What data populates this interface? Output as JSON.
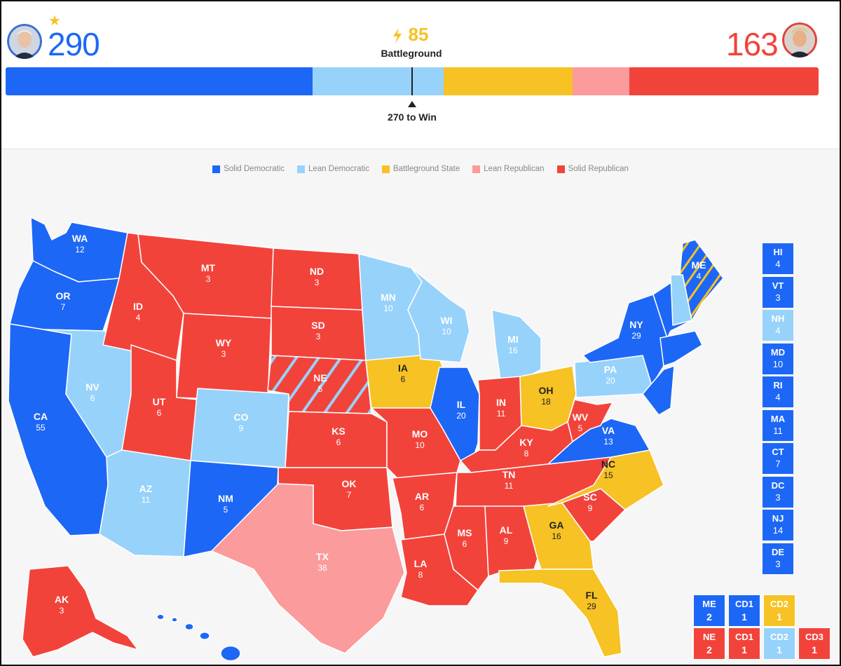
{
  "header": {
    "left_candidate": {
      "votes": "290",
      "winner_mark": "★",
      "color": "#1d67f6"
    },
    "right_candidate": {
      "votes": "163",
      "color": "#f2433b"
    },
    "battleground": {
      "votes": "85",
      "icon": "lightning-icon",
      "label": "Battleground",
      "color": "#f6c224"
    },
    "win_threshold": {
      "label": "270 to Win",
      "value": 270
    },
    "bar": [
      {
        "category": "Solid Democratic",
        "votes": 203,
        "color": "#1d67f6"
      },
      {
        "category": "Lean Democratic",
        "votes": 87,
        "color": "#97d2fb"
      },
      {
        "category": "Battleground State",
        "votes": 85,
        "color": "#f6c224"
      },
      {
        "category": "Lean Republican",
        "votes": 38,
        "color": "#fb9b9b"
      },
      {
        "category": "Solid Republican",
        "votes": 125,
        "color": "#f2433b"
      }
    ]
  },
  "legend": [
    {
      "label": "Solid Democratic",
      "color": "#1d67f6"
    },
    {
      "label": "Lean Democratic",
      "color": "#97d2fb"
    },
    {
      "label": "Battleground State",
      "color": "#f6c224"
    },
    {
      "label": "Lean Republican",
      "color": "#fb9b9b"
    },
    {
      "label": "Solid Republican",
      "color": "#f2433b"
    }
  ],
  "colors": {
    "SD": "#1d67f6",
    "LD": "#97d2fb",
    "BG": "#f6c224",
    "LR": "#fb9b9b",
    "SR": "#f2433b"
  },
  "states": [
    {
      "abbr": "WA",
      "ev": "12",
      "rating": "SD"
    },
    {
      "abbr": "OR",
      "ev": "7",
      "rating": "SD"
    },
    {
      "abbr": "CA",
      "ev": "55",
      "rating": "SD"
    },
    {
      "abbr": "NV",
      "ev": "6",
      "rating": "LD"
    },
    {
      "abbr": "ID",
      "ev": "4",
      "rating": "SR"
    },
    {
      "abbr": "MT",
      "ev": "3",
      "rating": "SR"
    },
    {
      "abbr": "WY",
      "ev": "3",
      "rating": "SR"
    },
    {
      "abbr": "UT",
      "ev": "6",
      "rating": "SR"
    },
    {
      "abbr": "AZ",
      "ev": "11",
      "rating": "LD"
    },
    {
      "abbr": "CO",
      "ev": "9",
      "rating": "LD"
    },
    {
      "abbr": "NM",
      "ev": "5",
      "rating": "SD"
    },
    {
      "abbr": "ND",
      "ev": "3",
      "rating": "SR"
    },
    {
      "abbr": "SD",
      "ev": "3",
      "rating": "SR"
    },
    {
      "abbr": "NE",
      "ev": "5",
      "rating": "SR"
    },
    {
      "abbr": "KS",
      "ev": "6",
      "rating": "SR"
    },
    {
      "abbr": "OK",
      "ev": "7",
      "rating": "SR"
    },
    {
      "abbr": "TX",
      "ev": "38",
      "rating": "LR"
    },
    {
      "abbr": "MN",
      "ev": "10",
      "rating": "LD"
    },
    {
      "abbr": "IA",
      "ev": "6",
      "rating": "BG"
    },
    {
      "abbr": "MO",
      "ev": "10",
      "rating": "SR"
    },
    {
      "abbr": "AR",
      "ev": "6",
      "rating": "SR"
    },
    {
      "abbr": "LA",
      "ev": "8",
      "rating": "SR"
    },
    {
      "abbr": "WI",
      "ev": "10",
      "rating": "LD"
    },
    {
      "abbr": "IL",
      "ev": "20",
      "rating": "SD"
    },
    {
      "abbr": "MI",
      "ev": "16",
      "rating": "LD"
    },
    {
      "abbr": "IN",
      "ev": "11",
      "rating": "SR"
    },
    {
      "abbr": "OH",
      "ev": "18",
      "rating": "BG"
    },
    {
      "abbr": "KY",
      "ev": "8",
      "rating": "SR"
    },
    {
      "abbr": "TN",
      "ev": "11",
      "rating": "SR"
    },
    {
      "abbr": "MS",
      "ev": "6",
      "rating": "SR"
    },
    {
      "abbr": "AL",
      "ev": "9",
      "rating": "SR"
    },
    {
      "abbr": "GA",
      "ev": "16",
      "rating": "BG"
    },
    {
      "abbr": "FL",
      "ev": "29",
      "rating": "BG"
    },
    {
      "abbr": "SC",
      "ev": "9",
      "rating": "SR"
    },
    {
      "abbr": "NC",
      "ev": "15",
      "rating": "BG"
    },
    {
      "abbr": "VA",
      "ev": "13",
      "rating": "SD"
    },
    {
      "abbr": "WV",
      "ev": "5",
      "rating": "SR"
    },
    {
      "abbr": "PA",
      "ev": "20",
      "rating": "LD"
    },
    {
      "abbr": "NY",
      "ev": "29",
      "rating": "SD"
    },
    {
      "abbr": "ME",
      "ev": "4",
      "rating": "SD"
    },
    {
      "abbr": "AK",
      "ev": "3",
      "rating": "SR"
    }
  ],
  "small_states": [
    {
      "abbr": "HI",
      "ev": "4",
      "rating": "SD"
    },
    {
      "abbr": "VT",
      "ev": "3",
      "rating": "SD"
    },
    {
      "abbr": "NH",
      "ev": "4",
      "rating": "LD"
    },
    {
      "abbr": "MD",
      "ev": "10",
      "rating": "SD"
    },
    {
      "abbr": "RI",
      "ev": "4",
      "rating": "SD"
    },
    {
      "abbr": "MA",
      "ev": "11",
      "rating": "SD"
    },
    {
      "abbr": "CT",
      "ev": "7",
      "rating": "SD"
    },
    {
      "abbr": "DC",
      "ev": "3",
      "rating": "SD"
    },
    {
      "abbr": "NJ",
      "ev": "14",
      "rating": "SD"
    },
    {
      "abbr": "DE",
      "ev": "3",
      "rating": "SD"
    }
  ],
  "districts": [
    {
      "abbr": "ME",
      "ev": "2",
      "rating": "SD"
    },
    {
      "abbr": "CD1",
      "ev": "1",
      "rating": "SD"
    },
    {
      "abbr": "CD2",
      "ev": "1",
      "rating": "BG"
    },
    {
      "abbr": "NE",
      "ev": "2",
      "rating": "SR"
    },
    {
      "abbr": "CD1",
      "ev": "1",
      "rating": "SR"
    },
    {
      "abbr": "CD2",
      "ev": "1",
      "rating": "LD"
    },
    {
      "abbr": "CD3",
      "ev": "1",
      "rating": "SR"
    }
  ]
}
